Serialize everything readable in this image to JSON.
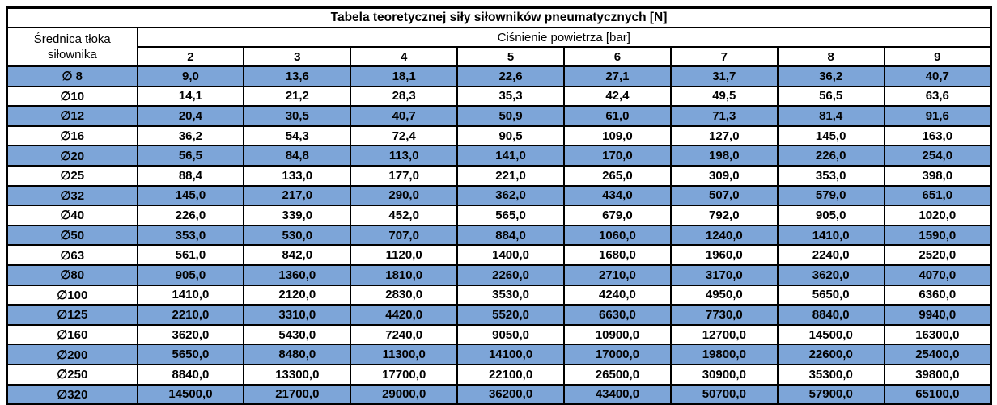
{
  "table": {
    "title": "Tabela teoretycznej siły siłowników pneumatycznych [N]",
    "row_header_line1": "Średnica tłoka",
    "row_header_line2": "siłownika",
    "col_group_header": "Ciśnienie powietrza [bar]",
    "pressures": [
      "2",
      "3",
      "4",
      "5",
      "6",
      "7",
      "8",
      "9"
    ],
    "rows": [
      {
        "diameter": "∅ 8",
        "values": [
          "9,0",
          "13,6",
          "18,1",
          "22,6",
          "27,1",
          "31,7",
          "36,2",
          "40,7"
        ]
      },
      {
        "diameter": "∅10",
        "values": [
          "14,1",
          "21,2",
          "28,3",
          "35,3",
          "42,4",
          "49,5",
          "56,5",
          "63,6"
        ]
      },
      {
        "diameter": "∅12",
        "values": [
          "20,4",
          "30,5",
          "40,7",
          "50,9",
          "61,0",
          "71,3",
          "81,4",
          "91,6"
        ]
      },
      {
        "diameter": "∅16",
        "values": [
          "36,2",
          "54,3",
          "72,4",
          "90,5",
          "109,0",
          "127,0",
          "145,0",
          "163,0"
        ]
      },
      {
        "diameter": "∅20",
        "values": [
          "56,5",
          "84,8",
          "113,0",
          "141,0",
          "170,0",
          "198,0",
          "226,0",
          "254,0"
        ]
      },
      {
        "diameter": "∅25",
        "values": [
          "88,4",
          "133,0",
          "177,0",
          "221,0",
          "265,0",
          "309,0",
          "353,0",
          "398,0"
        ]
      },
      {
        "diameter": "∅32",
        "values": [
          "145,0",
          "217,0",
          "290,0",
          "362,0",
          "434,0",
          "507,0",
          "579,0",
          "651,0"
        ]
      },
      {
        "diameter": "∅40",
        "values": [
          "226,0",
          "339,0",
          "452,0",
          "565,0",
          "679,0",
          "792,0",
          "905,0",
          "1020,0"
        ]
      },
      {
        "diameter": "∅50",
        "values": [
          "353,0",
          "530,0",
          "707,0",
          "884,0",
          "1060,0",
          "1240,0",
          "1410,0",
          "1590,0"
        ]
      },
      {
        "diameter": "∅63",
        "values": [
          "561,0",
          "842,0",
          "1120,0",
          "1400,0",
          "1680,0",
          "1960,0",
          "2240,0",
          "2520,0"
        ]
      },
      {
        "diameter": "∅80",
        "values": [
          "905,0",
          "1360,0",
          "1810,0",
          "2260,0",
          "2710,0",
          "3170,0",
          "3620,0",
          "4070,0"
        ]
      },
      {
        "diameter": "∅100",
        "values": [
          "1410,0",
          "2120,0",
          "2830,0",
          "3530,0",
          "4240,0",
          "4950,0",
          "5650,0",
          "6360,0"
        ]
      },
      {
        "diameter": "∅125",
        "values": [
          "2210,0",
          "3310,0",
          "4420,0",
          "5520,0",
          "6630,0",
          "7730,0",
          "8840,0",
          "9940,0"
        ]
      },
      {
        "diameter": "∅160",
        "values": [
          "3620,0",
          "5430,0",
          "7240,0",
          "9050,0",
          "10900,0",
          "12700,0",
          "14500,0",
          "16300,0"
        ]
      },
      {
        "diameter": "∅200",
        "values": [
          "5650,0",
          "8480,0",
          "11300,0",
          "14100,0",
          "17000,0",
          "19800,0",
          "22600,0",
          "25400,0"
        ]
      },
      {
        "diameter": "∅250",
        "values": [
          "8840,0",
          "13300,0",
          "17700,0",
          "22100,0",
          "26500,0",
          "30900,0",
          "35300,0",
          "39800,0"
        ]
      },
      {
        "diameter": "∅320",
        "values": [
          "14500,0",
          "21700,0",
          "29000,0",
          "36200,0",
          "43400,0",
          "50700,0",
          "57900,0",
          "65100,0"
        ]
      }
    ],
    "colors": {
      "band_blue": "#7DA5D8",
      "band_white": "#FFFFFF",
      "border": "#000000",
      "text": "#000000"
    }
  }
}
